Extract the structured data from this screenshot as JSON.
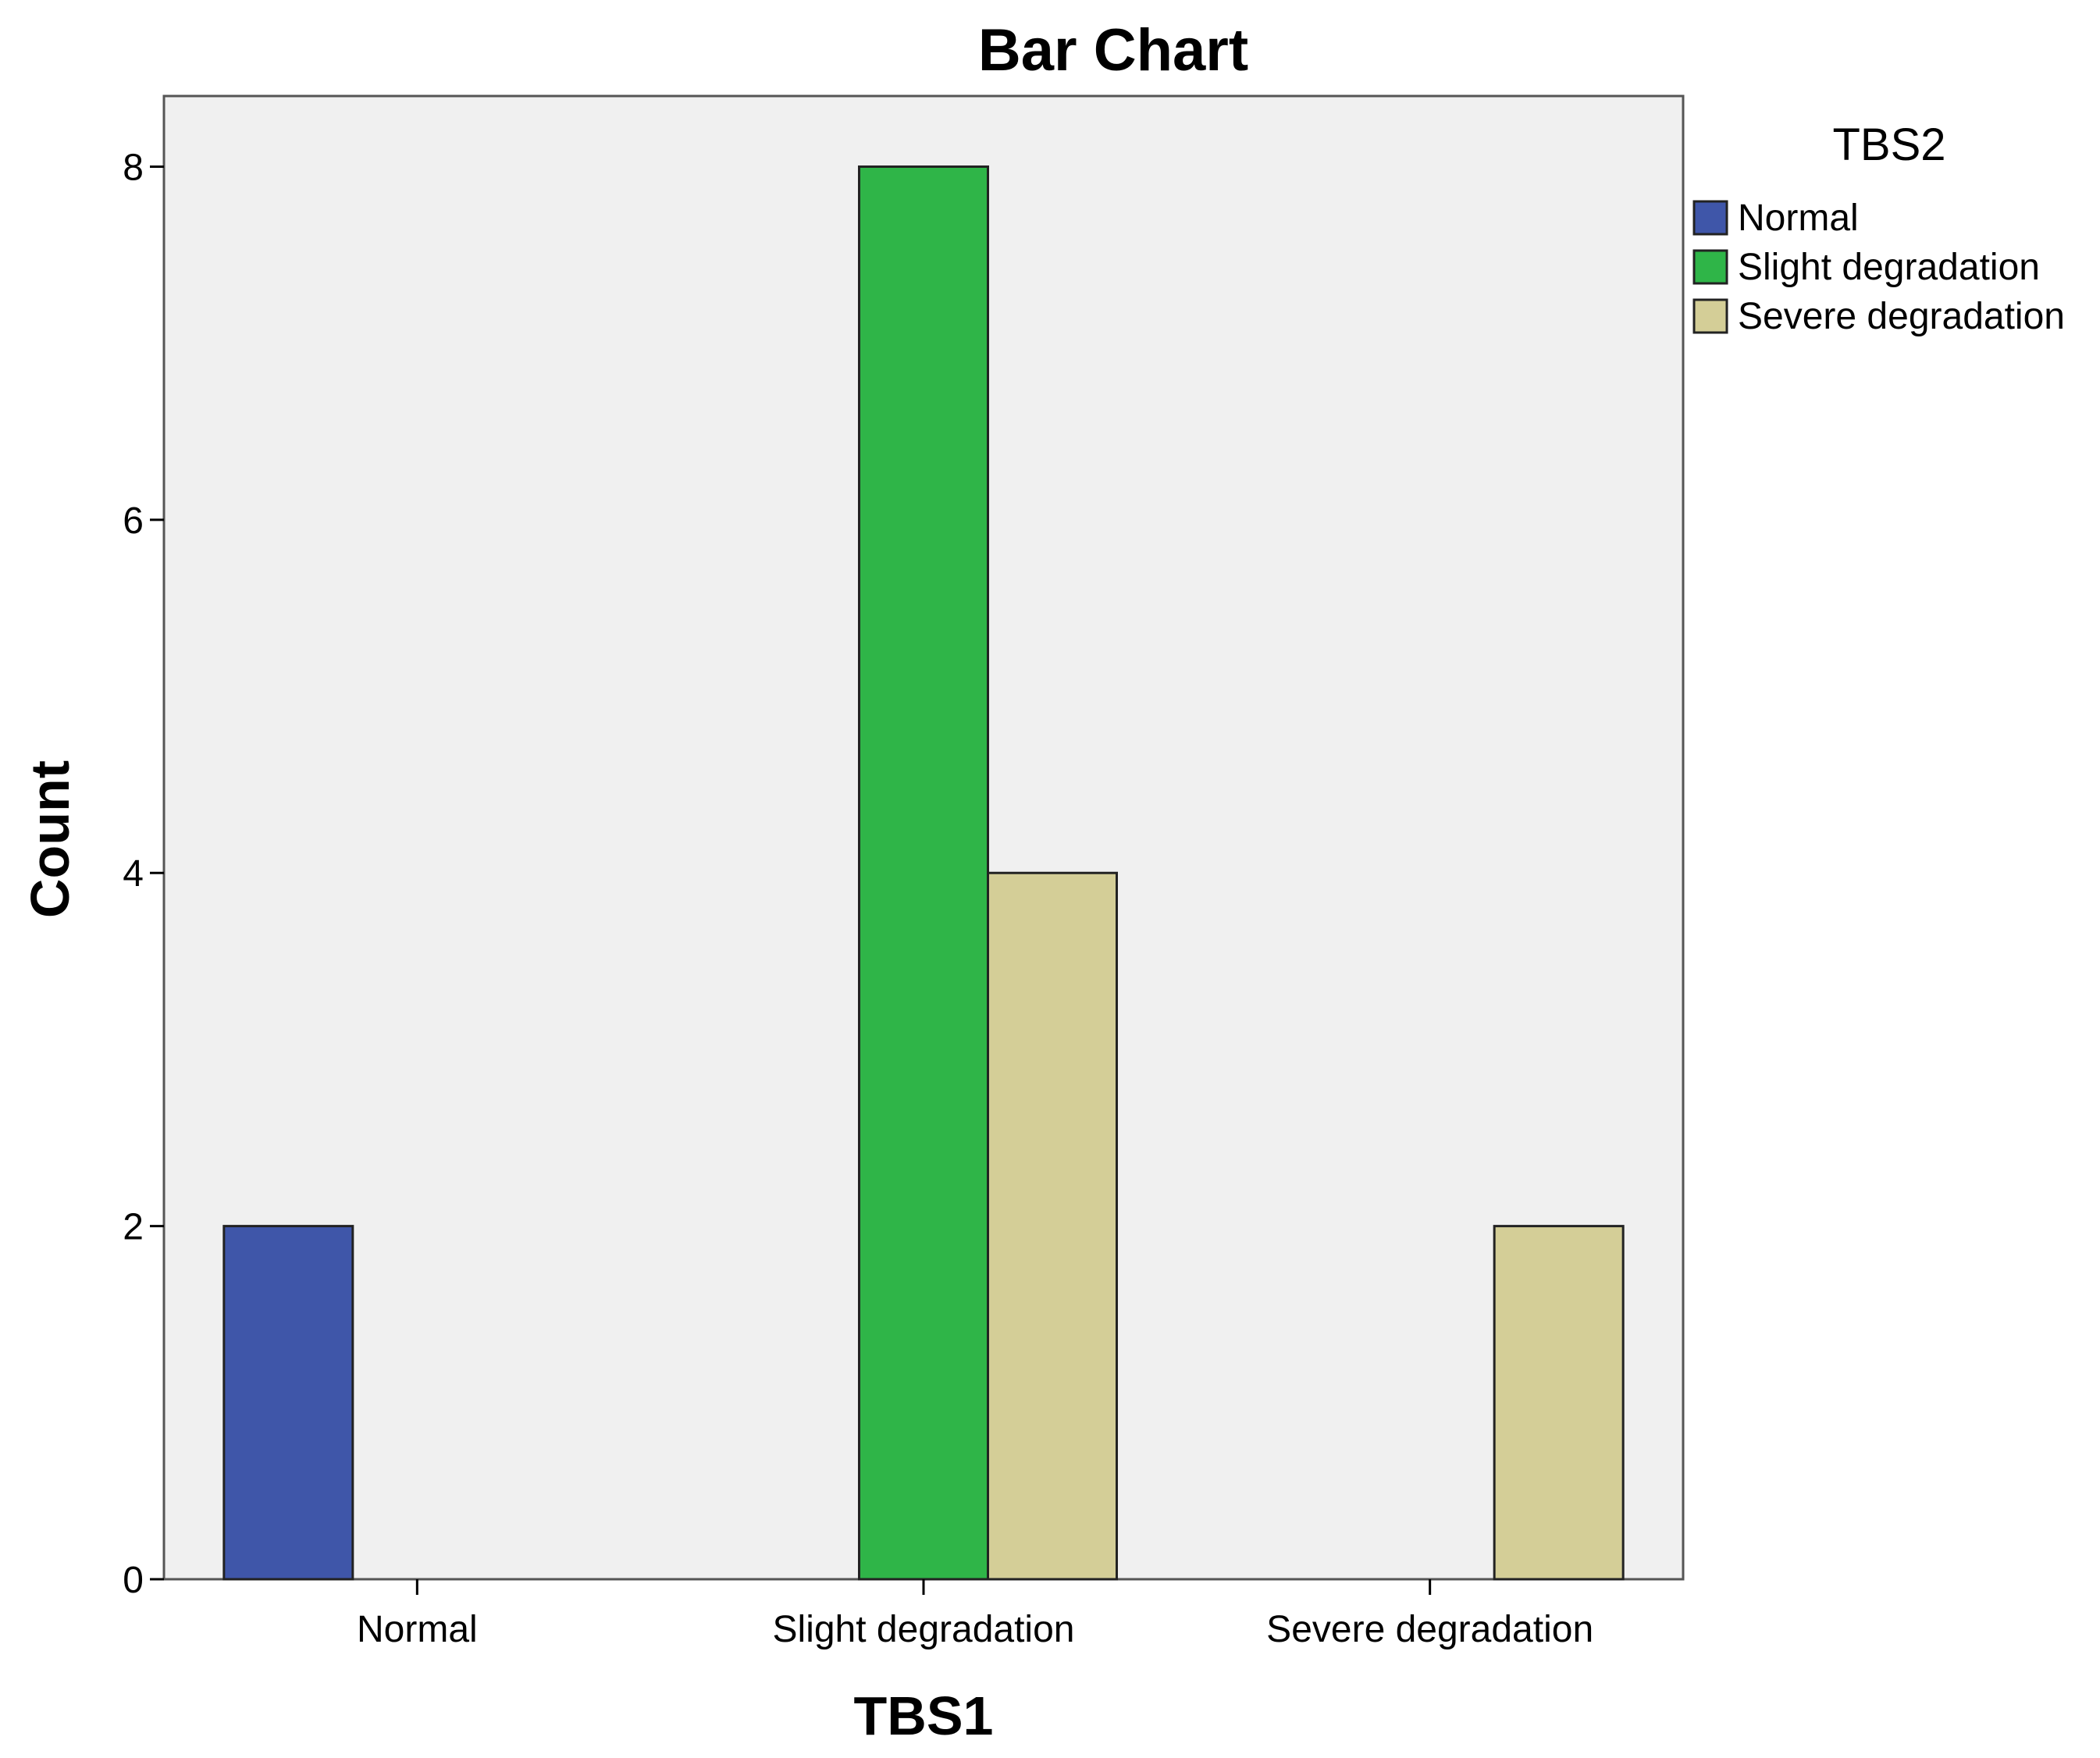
{
  "chart_data": {
    "type": "bar",
    "title": "Bar Chart",
    "xlabel": "TBS1",
    "ylabel": "Count",
    "categories": [
      "Normal",
      "Slight degradation",
      "Severe degradation"
    ],
    "series": [
      {
        "name": "Normal",
        "color": "#3f56a9",
        "values": [
          2,
          0,
          0
        ]
      },
      {
        "name": "Slight degradation",
        "color": "#2fb548",
        "values": [
          0,
          8,
          0
        ]
      },
      {
        "name": "Severe degradation",
        "color": "#d4ce97",
        "values": [
          0,
          4,
          2
        ]
      }
    ],
    "ylim": [
      0,
      8.4
    ],
    "yticks": [
      0,
      2,
      4,
      6,
      8
    ],
    "legend": {
      "title": "TBS2",
      "placement": "right"
    },
    "plot_background": "#f0f0f0",
    "grid": false
  }
}
